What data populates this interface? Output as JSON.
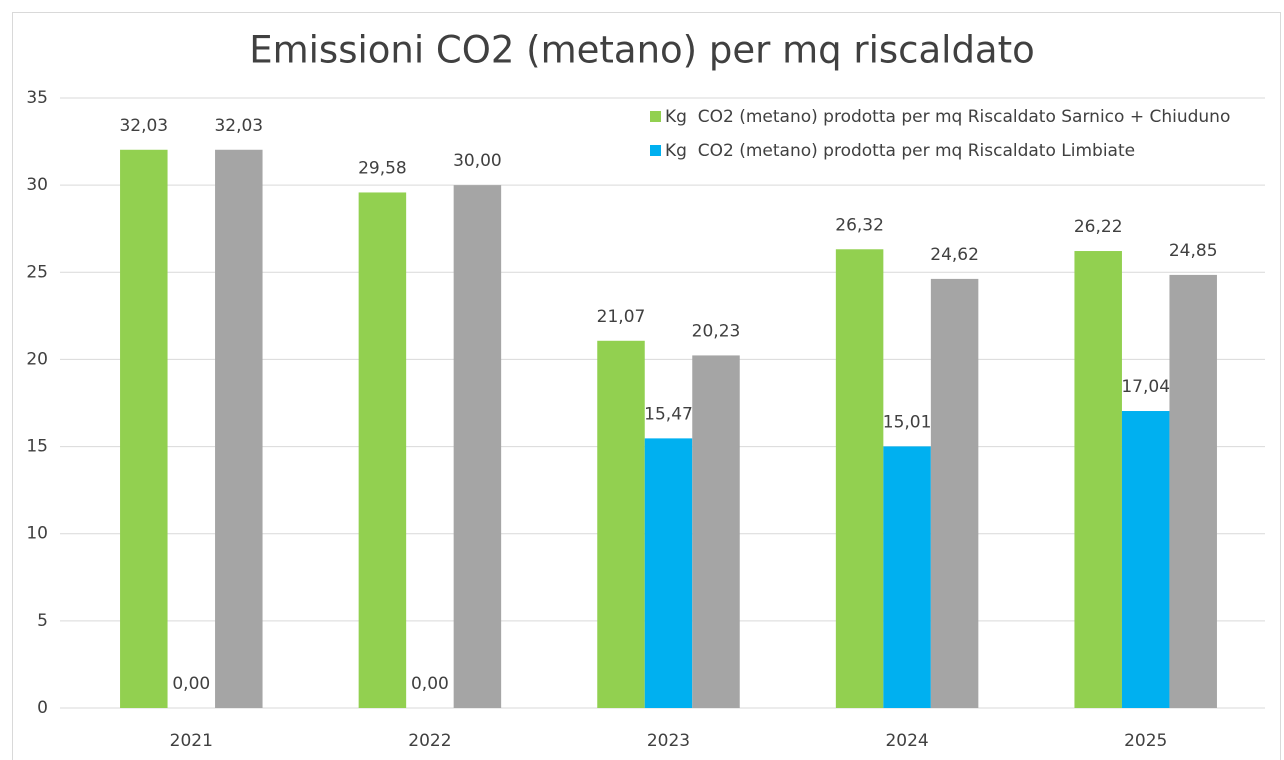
{
  "chart_data": {
    "type": "bar",
    "title": "Emissioni CO2 (metano) per mq riscaldato",
    "categories": [
      "2021",
      "2022",
      "2023",
      "2024",
      "2025"
    ],
    "series": [
      {
        "name": "Kg  CO2 (metano) prodotta per mq Riscaldato Sarnico + Chiuduno",
        "color": "#92d050",
        "values": [
          32.03,
          29.58,
          21.07,
          26.32,
          26.22
        ],
        "value_labels": [
          "32,03",
          "29,58",
          "21,07",
          "26,32",
          "26,22"
        ]
      },
      {
        "name": "Kg  CO2 (metano) prodotta per mq Riscaldato Limbiate",
        "color": "#00b0f0",
        "values": [
          0,
          0,
          15.47,
          15.01,
          17.04
        ],
        "value_labels": [
          "0,00",
          "0,00",
          "15,47",
          "15,01",
          "17,04"
        ]
      },
      {
        "color": "#a5a5a5",
        "values": [
          32.03,
          30.0,
          20.23,
          24.62,
          24.85
        ],
        "value_labels": [
          "32,03",
          "30,00",
          "20,23",
          "24,62",
          "24,85"
        ]
      }
    ],
    "ylim": [
      0,
      35
    ],
    "yticks": [
      0,
      5,
      10,
      15,
      20,
      25,
      30,
      35
    ],
    "grid": true,
    "legend": "top-right"
  }
}
